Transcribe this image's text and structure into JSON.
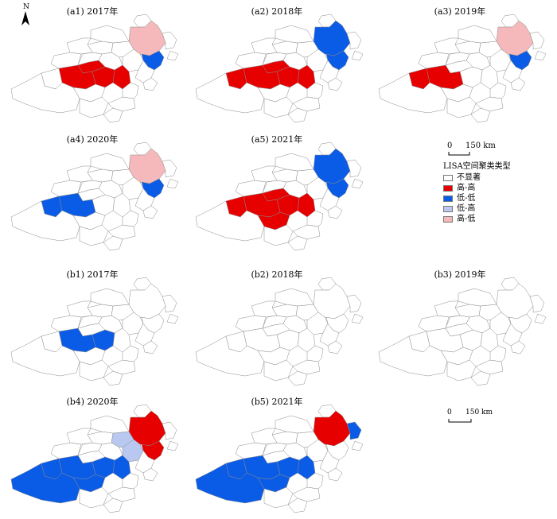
{
  "north": {
    "label": "N"
  },
  "panels": [
    {
      "id": "a1",
      "title": "(a1) 2017年",
      "hh": [
        "cs",
        "fy",
        "cz",
        "cm"
      ],
      "ll": [
        "rz"
      ],
      "lh": [],
      "hl": [
        "wf"
      ]
    },
    {
      "id": "a2",
      "title": "(a2) 2018年",
      "hh": [
        "ps",
        "cs",
        "fy",
        "cz",
        "cm"
      ],
      "ll": [
        "wf",
        "rz"
      ],
      "lh": [],
      "hl": []
    },
    {
      "id": "a3",
      "title": "(a3) 2019年",
      "hh": [
        "ps",
        "cs"
      ],
      "ll": [
        "rz"
      ],
      "lh": [],
      "hl": [
        "wf"
      ]
    },
    {
      "id": "a4",
      "title": "(a4) 2020年",
      "hh": [],
      "ll": [
        "ps",
        "cs",
        "rz"
      ],
      "lh": [],
      "hl": [
        "wf"
      ]
    },
    {
      "id": "a5",
      "title": "(a5) 2021年",
      "hh": [
        "ps",
        "cs",
        "fy",
        "cz",
        "cm",
        "jt"
      ],
      "ll": [
        "wf",
        "rz"
      ],
      "lh": [],
      "hl": []
    },
    {
      "id": "b1",
      "title": "(b1) 2017年",
      "hh": [],
      "ll": [
        "cs",
        "cz"
      ],
      "lh": [],
      "hl": []
    },
    {
      "id": "b2",
      "title": "(b2) 2018年",
      "hh": [],
      "ll": [],
      "lh": [],
      "hl": []
    },
    {
      "id": "b3",
      "title": "(b3) 2019年",
      "hh": [],
      "ll": [],
      "lh": [],
      "hl": []
    },
    {
      "id": "b4",
      "title": "(b4) 2020年",
      "hh": [
        "wf",
        "rz"
      ],
      "ll": [
        "nd",
        "cs",
        "cz",
        "cm",
        "jt",
        "ps"
      ],
      "lh": [
        "zb",
        "ls"
      ],
      "hl": []
    },
    {
      "id": "b5",
      "title": "(b5) 2021年",
      "hh": [
        "wf"
      ],
      "ll": [
        "nd",
        "cs",
        "cz",
        "cm",
        "jt",
        "ps",
        "qd"
      ],
      "lh": [],
      "hl": []
    }
  ],
  "legend": {
    "title": "LISA空间聚类类型",
    "items": [
      {
        "key": "ns",
        "label": "不显著",
        "color": "#ffffff"
      },
      {
        "key": "hh",
        "label": "高-高",
        "color": "#e60000"
      },
      {
        "key": "ll",
        "label": "低-低",
        "color": "#0a5ce6"
      },
      {
        "key": "lh",
        "label": "低-高",
        "color": "#b9c8f0"
      },
      {
        "key": "hl",
        "label": "高-低",
        "color": "#f5b8bb"
      }
    ]
  },
  "scalebars": [
    {
      "id": "top",
      "zero": "0",
      "dist": "150 km"
    },
    {
      "id": "bottom",
      "zero": "0",
      "dist": "150 km"
    }
  ]
}
